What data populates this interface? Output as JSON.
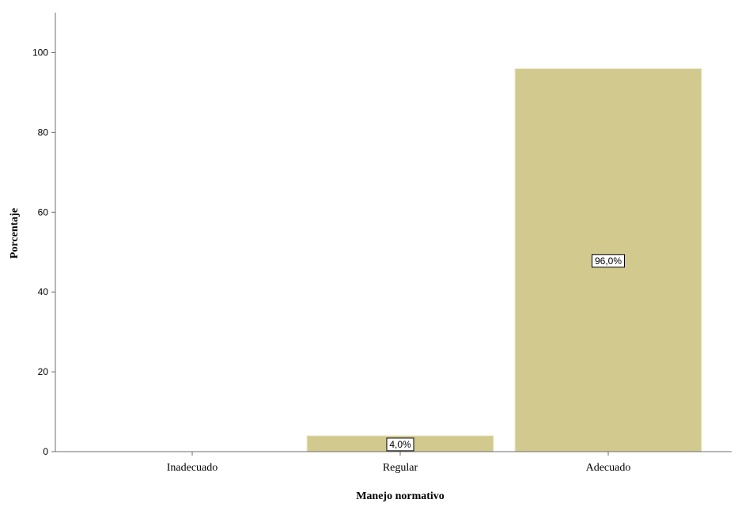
{
  "chart_data": {
    "type": "bar",
    "title": "",
    "xlabel": "Manejo normativo",
    "ylabel": "Porcentaje",
    "categories": [
      "Inadecuado",
      "Regular",
      "Adecuado"
    ],
    "values": [
      0,
      4.0,
      96.0
    ],
    "data_labels": [
      "",
      "4,0%",
      "96,0%"
    ],
    "ylim": [
      0,
      110
    ],
    "yticks": [
      0,
      20,
      40,
      60,
      80,
      100
    ],
    "grid": false,
    "legend": "none",
    "bar_color": "#d1c98e",
    "bar_edge_color": "#f1edd2"
  }
}
